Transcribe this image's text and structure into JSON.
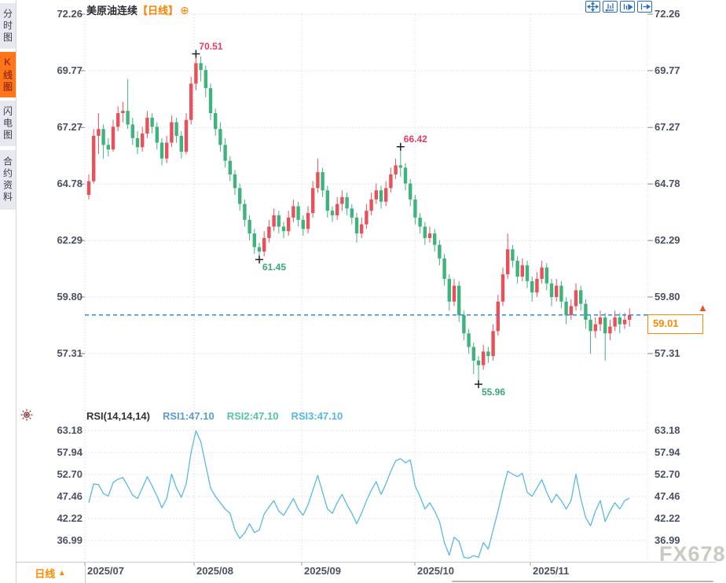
{
  "sidebar": {
    "tabs": [
      {
        "label": "分时图",
        "selected": false
      },
      {
        "label": "K线图",
        "selected": true
      },
      {
        "label": "闪电图",
        "selected": false
      },
      {
        "label": "合约资料",
        "selected": false
      }
    ]
  },
  "header": {
    "title": "美原油连续",
    "period_tag": "【日线】",
    "add_indicator_icon": "⊕"
  },
  "toolbar": {
    "icons": [
      "pan-icon",
      "scale-left-icon",
      "playback-icon",
      "goto-latest-icon"
    ],
    "accent_blue": "#2a6fc0"
  },
  "rsi_header": {
    "name_label": "RSI(14,14,14)",
    "rsi1_label": "RSI1:47.10",
    "rsi2_label": "RSI2:47.10",
    "rsi3_label": "RSI3:47.10",
    "rsi1_color": "#5b9bd5",
    "rsi2_color": "#52c79a",
    "rsi3_color": "#54b8e8"
  },
  "bottom_bar": {
    "period_label": "日线",
    "period_arrow": "▲"
  },
  "price_marker": {
    "label": "59.01",
    "arrow": "▲",
    "box_color": "#ff8a00"
  },
  "watermark": "FX678",
  "chart_data": {
    "type": "candlestick",
    "title": "美原油连续",
    "period": "日线",
    "price_axis_ticks": [
      "72.26",
      "69.77",
      "67.27",
      "64.78",
      "62.29",
      "59.80",
      "57.31"
    ],
    "rsi_axis_ticks": [
      "63.18",
      "57.94",
      "52.70",
      "47.46",
      "42.22",
      "36.99"
    ],
    "x_tick_labels": [
      "2025/07",
      "2025/08",
      "2025/09",
      "2025/10",
      "2025/11"
    ],
    "last_price": 59.01,
    "last_price_label": "59.01",
    "rsi_current": 47.1,
    "annotated_points": [
      {
        "label": "70.51",
        "kind": "high",
        "index": 22
      },
      {
        "label": "61.45",
        "kind": "low",
        "index": 35
      },
      {
        "label": "66.42",
        "kind": "high",
        "index": 64
      },
      {
        "label": "55.96",
        "kind": "low",
        "index": 80
      }
    ],
    "colors": {
      "up": "#e8505a",
      "down": "#3eb37e",
      "rsi_line": "#58b8e8",
      "last_price_line": "#2e86e0",
      "high_label": "#e83a5e",
      "low_label": "#3aa874",
      "grid": "#dcdce4",
      "axis_text": "#4a5164"
    },
    "candles": [
      [
        64.3,
        65.2,
        64.1,
        64.9
      ],
      [
        64.9,
        67.2,
        64.8,
        66.9
      ],
      [
        66.9,
        67.9,
        66.1,
        67.2
      ],
      [
        67.2,
        67.4,
        65.9,
        66.5
      ],
      [
        66.5,
        66.8,
        66.0,
        66.3
      ],
      [
        66.3,
        67.6,
        66.2,
        67.3
      ],
      [
        67.3,
        68.2,
        67.1,
        67.9
      ],
      [
        67.9,
        68.4,
        67.5,
        68.0
      ],
      [
        68.0,
        69.4,
        67.2,
        67.4
      ],
      [
        67.4,
        67.7,
        66.5,
        66.8
      ],
      [
        66.8,
        67.1,
        66.1,
        66.4
      ],
      [
        66.4,
        67.3,
        66.2,
        67.0
      ],
      [
        67.0,
        68.0,
        66.8,
        67.7
      ],
      [
        67.7,
        67.9,
        67.0,
        67.3
      ],
      [
        67.3,
        67.5,
        66.3,
        66.6
      ],
      [
        66.6,
        66.8,
        65.6,
        65.9
      ],
      [
        65.9,
        66.9,
        65.7,
        66.6
      ],
      [
        66.6,
        67.8,
        66.4,
        67.5
      ],
      [
        67.5,
        67.7,
        66.6,
        66.9
      ],
      [
        66.9,
        67.1,
        65.9,
        66.2
      ],
      [
        66.2,
        67.9,
        66.1,
        67.6
      ],
      [
        67.6,
        69.5,
        67.4,
        69.2
      ],
      [
        69.2,
        70.51,
        68.9,
        70.1
      ],
      [
        70.1,
        70.4,
        69.3,
        69.8
      ],
      [
        69.8,
        70.0,
        68.6,
        69.0
      ],
      [
        69.0,
        69.2,
        67.6,
        67.9
      ],
      [
        67.9,
        68.1,
        66.9,
        67.2
      ],
      [
        67.2,
        67.5,
        66.2,
        66.5
      ],
      [
        66.5,
        66.8,
        65.5,
        65.8
      ],
      [
        65.8,
        66.0,
        64.9,
        65.2
      ],
      [
        65.2,
        65.4,
        64.3,
        64.6
      ],
      [
        64.6,
        64.8,
        63.6,
        63.9
      ],
      [
        63.9,
        64.1,
        62.9,
        63.2
      ],
      [
        63.2,
        63.4,
        62.3,
        62.6
      ],
      [
        62.6,
        62.8,
        61.7,
        62.0
      ],
      [
        62.0,
        62.2,
        61.45,
        61.8
      ],
      [
        61.8,
        62.7,
        61.6,
        62.4
      ],
      [
        62.4,
        63.2,
        62.2,
        62.9
      ],
      [
        62.9,
        63.7,
        62.7,
        63.4
      ],
      [
        63.4,
        63.6,
        62.6,
        62.9
      ],
      [
        62.9,
        63.1,
        62.4,
        62.7
      ],
      [
        62.7,
        63.6,
        62.5,
        63.3
      ],
      [
        63.3,
        64.1,
        63.1,
        63.8
      ],
      [
        63.8,
        64.0,
        62.9,
        63.2
      ],
      [
        63.2,
        63.4,
        62.5,
        62.8
      ],
      [
        62.8,
        63.8,
        62.6,
        63.5
      ],
      [
        63.5,
        64.9,
        63.3,
        64.6
      ],
      [
        64.6,
        65.9,
        64.4,
        65.3
      ],
      [
        65.3,
        65.5,
        64.2,
        64.5
      ],
      [
        64.5,
        64.7,
        63.3,
        63.6
      ],
      [
        63.6,
        63.8,
        63.1,
        63.4
      ],
      [
        63.4,
        64.2,
        63.2,
        63.9
      ],
      [
        63.9,
        64.5,
        63.6,
        64.2
      ],
      [
        64.2,
        64.4,
        63.4,
        63.7
      ],
      [
        63.7,
        63.9,
        63.0,
        63.3
      ],
      [
        63.3,
        63.5,
        62.2,
        62.6
      ],
      [
        62.6,
        63.3,
        62.4,
        63.0
      ],
      [
        63.0,
        63.9,
        62.8,
        63.6
      ],
      [
        63.6,
        64.4,
        63.4,
        64.1
      ],
      [
        64.1,
        64.8,
        63.9,
        64.5
      ],
      [
        64.5,
        64.7,
        63.7,
        64.0
      ],
      [
        64.0,
        64.9,
        63.8,
        64.6
      ],
      [
        64.6,
        65.5,
        64.4,
        65.2
      ],
      [
        65.2,
        65.9,
        65.0,
        65.6
      ],
      [
        65.6,
        66.42,
        65.1,
        65.5
      ],
      [
        65.5,
        65.7,
        64.5,
        64.8
      ],
      [
        64.8,
        65.0,
        63.8,
        64.1
      ],
      [
        64.1,
        64.3,
        63.0,
        63.3
      ],
      [
        63.3,
        63.5,
        62.6,
        62.9
      ],
      [
        62.9,
        63.1,
        62.1,
        62.4
      ],
      [
        62.4,
        62.9,
        62.2,
        62.6
      ],
      [
        62.6,
        62.8,
        61.8,
        62.1
      ],
      [
        62.1,
        62.3,
        61.2,
        61.5
      ],
      [
        61.5,
        61.7,
        60.3,
        60.6
      ],
      [
        60.6,
        60.8,
        59.2,
        59.6
      ],
      [
        59.6,
        60.6,
        59.4,
        60.3
      ],
      [
        60.3,
        60.5,
        58.7,
        59.0
      ],
      [
        59.0,
        59.2,
        57.9,
        58.2
      ],
      [
        58.2,
        58.4,
        57.3,
        57.6
      ],
      [
        57.6,
        57.8,
        56.4,
        57.0
      ],
      [
        57.0,
        57.2,
        55.96,
        56.8
      ],
      [
        56.8,
        57.7,
        56.6,
        57.4
      ],
      [
        57.4,
        57.6,
        56.9,
        57.2
      ],
      [
        57.2,
        58.6,
        57.0,
        58.3
      ],
      [
        58.3,
        59.9,
        58.1,
        59.6
      ],
      [
        59.6,
        61.1,
        59.4,
        60.8
      ],
      [
        60.8,
        62.6,
        60.6,
        61.9
      ],
      [
        61.9,
        62.1,
        61.1,
        61.4
      ],
      [
        61.4,
        61.6,
        60.4,
        60.7
      ],
      [
        60.7,
        61.5,
        60.5,
        61.2
      ],
      [
        61.2,
        61.4,
        60.2,
        60.5
      ],
      [
        60.5,
        60.7,
        59.6,
        60.0
      ],
      [
        60.0,
        60.9,
        59.8,
        60.6
      ],
      [
        60.6,
        61.4,
        60.4,
        61.1
      ],
      [
        61.1,
        61.3,
        60.1,
        60.4
      ],
      [
        60.4,
        60.6,
        59.4,
        59.8
      ],
      [
        59.8,
        60.6,
        59.6,
        60.3
      ],
      [
        60.3,
        60.5,
        59.3,
        59.6
      ],
      [
        59.6,
        59.8,
        58.6,
        59.0
      ],
      [
        59.0,
        59.7,
        58.8,
        59.4
      ],
      [
        59.4,
        60.4,
        59.2,
        60.1
      ],
      [
        60.1,
        60.3,
        59.2,
        59.5
      ],
      [
        59.5,
        59.7,
        58.4,
        58.8
      ],
      [
        58.8,
        59.0,
        57.3,
        58.3
      ],
      [
        58.3,
        58.9,
        58.0,
        58.6
      ],
      [
        58.6,
        59.2,
        58.3,
        58.9
      ],
      [
        58.9,
        59.1,
        57.0,
        58.2
      ],
      [
        58.2,
        58.8,
        57.9,
        58.5
      ],
      [
        58.5,
        59.2,
        58.3,
        58.9
      ],
      [
        58.9,
        59.1,
        58.2,
        58.6
      ],
      [
        58.6,
        59.1,
        58.4,
        58.8
      ],
      [
        58.8,
        59.3,
        58.5,
        59.01
      ]
    ],
    "rsi_values": [
      46.0,
      50.5,
      50.3,
      48.2,
      47.6,
      50.8,
      51.6,
      52.0,
      50.0,
      47.8,
      47.0,
      49.5,
      52.2,
      50.0,
      47.6,
      44.8,
      47.0,
      52.8,
      49.5,
      47.3,
      50.5,
      58.0,
      63.1,
      60.5,
      55.0,
      49.5,
      47.5,
      46.0,
      44.5,
      43.5,
      39.5,
      37.5,
      38.8,
      41.0,
      38.9,
      39.5,
      43.3,
      45.0,
      46.5,
      44.0,
      43.0,
      45.0,
      47.0,
      44.5,
      43.0,
      45.5,
      49.0,
      52.5,
      48.5,
      44.5,
      43.5,
      46.0,
      48.0,
      45.5,
      43.5,
      41.0,
      43.5,
      46.5,
      49.0,
      51.0,
      48.0,
      50.5,
      53.5,
      56.0,
      56.5,
      55.5,
      56.2,
      50.0,
      47.5,
      44.5,
      46.0,
      44.0,
      41.5,
      36.5,
      33.5,
      37.8,
      36.8,
      33.0,
      32.8,
      33.4,
      33.0,
      36.5,
      35.0,
      39.5,
      44.0,
      49.0,
      53.5,
      52.8,
      52.2,
      53.0,
      48.5,
      47.5,
      49.5,
      51.5,
      48.5,
      46.0,
      48.0,
      46.5,
      44.5,
      46.5,
      52.8,
      47.0,
      42.5,
      40.5,
      44.0,
      46.5,
      41.5,
      44.0,
      46.0,
      44.5,
      46.5,
      47.1
    ]
  }
}
